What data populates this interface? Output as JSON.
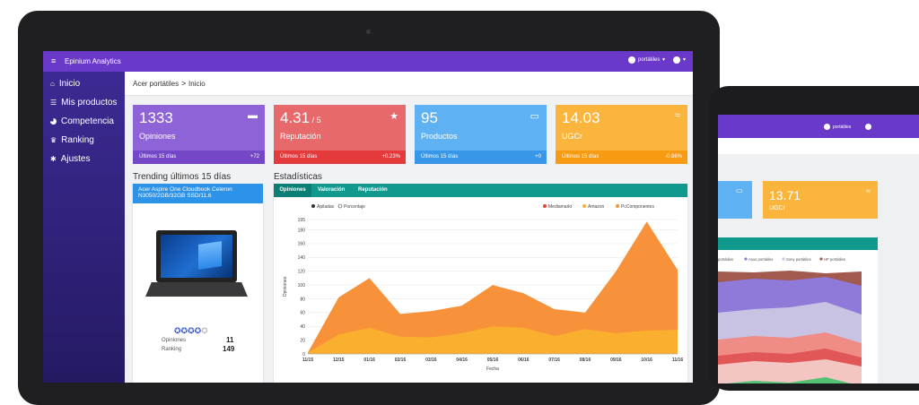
{
  "app": {
    "title": "Epinium Analytics",
    "user_menu": "portátiles"
  },
  "sidebar": {
    "items": [
      {
        "label": "Inicio",
        "icon": "home-icon"
      },
      {
        "label": "Mis productos",
        "icon": "list-icon"
      },
      {
        "label": "Competencia",
        "icon": "pie-icon"
      },
      {
        "label": "Ranking",
        "icon": "trophy-icon"
      },
      {
        "label": "Ajustes",
        "icon": "gear-icon"
      }
    ]
  },
  "breadcrumb": {
    "parent": "Acer portátiles",
    "sep": ">",
    "current": "Inicio"
  },
  "cards": [
    {
      "value": "1333",
      "unit": "",
      "label": "Opiniones",
      "footer": "Últimos 15 días",
      "delta": "+72",
      "color": "#8e63d7",
      "footer_color": "#7447c7",
      "icon": "comment-icon"
    },
    {
      "value": "4.31",
      "unit": " / 5",
      "label": "Reputación",
      "footer": "Últimos 15 días",
      "delta": "+0.23%",
      "color": "#e8696b",
      "footer_color": "#e53a3c",
      "icon": "star-icon"
    },
    {
      "value": "95",
      "unit": "",
      "label": "Productos",
      "footer": "Últimos 15 días",
      "delta": "+0",
      "color": "#5eb2f3",
      "footer_color": "#3897e9",
      "icon": "devices-icon"
    },
    {
      "value": "14.03",
      "unit": "",
      "label": "UGCr",
      "footer": "Últimos 15 días",
      "delta": "-0.86%",
      "color": "#fbb43c",
      "footer_color": "#f89a12",
      "icon": "trend-icon"
    }
  ],
  "trending": {
    "title": "Trending últimos 15 días",
    "product_title": "Acer Aspire One Cloudbook Celeron N3050/2GB/32GB SSD/11.6",
    "opiniones_label": "Opiniones",
    "opiniones_value": "11",
    "ranking_label": "Ranking",
    "ranking_value": "149",
    "rating": 4
  },
  "stats": {
    "title": "Estadísticas",
    "tabs": [
      "Opiniones",
      "Valoración",
      "Reputación"
    ],
    "accent": "#11998e"
  },
  "chart_data": {
    "type": "area",
    "xlabel": "Fecha",
    "ylabel": "Opiniones",
    "ylim": [
      0,
      195
    ],
    "y_ticks": [
      0,
      20,
      40,
      60,
      80,
      100,
      120,
      140,
      160,
      180,
      195
    ],
    "x_ticks": [
      "11/15",
      "12/15",
      "01/16",
      "02/16",
      "03/16",
      "04/16",
      "05/16",
      "06/16",
      "07/16",
      "08/16",
      "09/16",
      "10/16",
      "11/16"
    ],
    "toggles": [
      "Apiladas",
      "Porcentaje"
    ],
    "series": [
      {
        "name": "Mediamarkt",
        "color": "#f0402b",
        "values": [
          0,
          0,
          0,
          0,
          0,
          0,
          0,
          0,
          0,
          0,
          0,
          0,
          0
        ]
      },
      {
        "name": "Amazon",
        "color": "#fbb12e",
        "values": [
          2,
          28,
          38,
          25,
          24,
          30,
          40,
          38,
          26,
          36,
          30,
          34,
          35
        ]
      },
      {
        "name": "PcComponentes",
        "color": "#f7923a",
        "values": [
          2,
          82,
          110,
          58,
          62,
          70,
          100,
          88,
          65,
          60,
          120,
          192,
          122
        ]
      }
    ]
  },
  "tablet": {
    "user_menu": "portátiles",
    "card_blue_color": "#5eb2f3",
    "card_ugcr": {
      "value": "13.71",
      "label": "UGCr",
      "color": "#fbb43c"
    },
    "legend": [
      "portátiles",
      "Asus portátiles",
      "Sony portátiles",
      "HP portátiles"
    ],
    "legend_colors": [
      "#e15757",
      "#8f79d9",
      "#c9c3e3",
      "#a35a4e"
    ]
  }
}
